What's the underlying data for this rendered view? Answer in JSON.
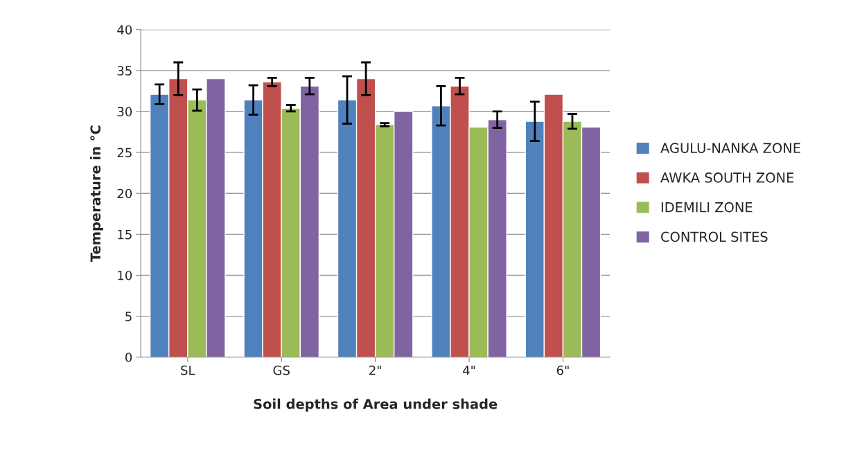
{
  "chart_data": {
    "type": "bar",
    "xlabel": "Soil depths of Area under shade",
    "ylabel": "Temperature in °C",
    "categories": [
      "SL",
      "GS",
      "2\"",
      "4\"",
      "6\""
    ],
    "series": [
      {
        "name": "AGULU-NANKA ZONE",
        "color": "#4f81bd",
        "values": [
          32.1,
          31.4,
          31.4,
          30.7,
          28.8
        ],
        "errors": [
          1.2,
          1.8,
          2.9,
          2.4,
          2.4
        ]
      },
      {
        "name": "AWKA SOUTH ZONE",
        "color": "#c0504d",
        "values": [
          34.0,
          33.6,
          34.0,
          33.1,
          32.1
        ],
        "errors": [
          2.0,
          0.5,
          2.0,
          1.0,
          null
        ]
      },
      {
        "name": "IDEMILI ZONE",
        "color": "#9bbb59",
        "values": [
          31.4,
          30.4,
          28.4,
          28.1,
          28.8
        ],
        "errors": [
          1.3,
          0.4,
          0.2,
          null,
          0.9
        ]
      },
      {
        "name": "CONTROL SITES",
        "color": "#8064a2",
        "values": [
          34.0,
          33.1,
          30.0,
          29.0,
          28.1
        ],
        "errors": [
          null,
          1.0,
          null,
          1.0,
          null
        ]
      }
    ],
    "ylim": [
      0,
      40
    ],
    "yticks": [
      0,
      5,
      10,
      15,
      20,
      25,
      30,
      35,
      40
    ],
    "grid": "y",
    "legend": "right"
  }
}
